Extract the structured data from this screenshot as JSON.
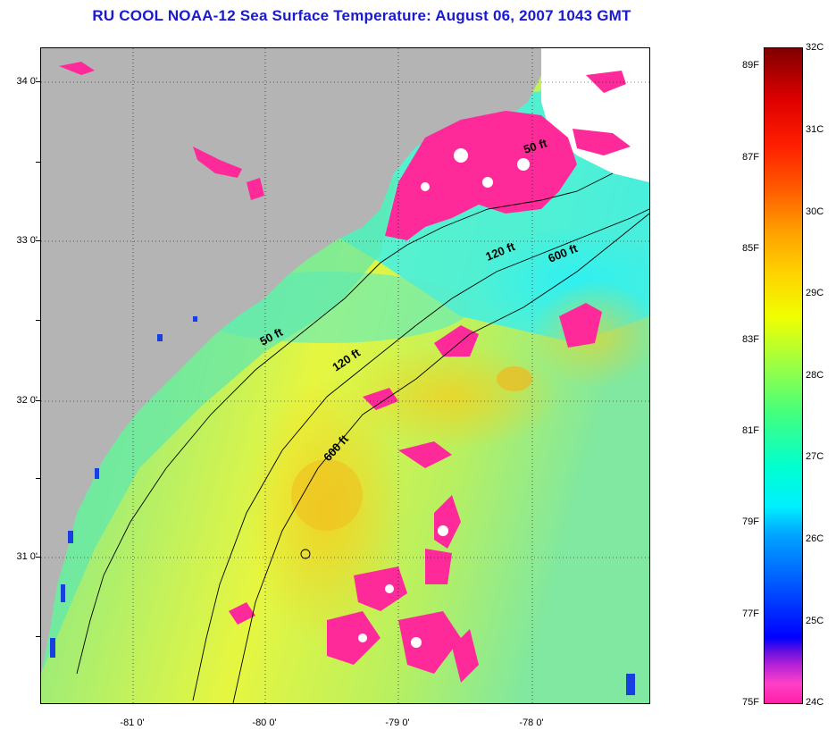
{
  "title": "RU COOL  NOAA-12  Sea Surface Temperature:  August 06, 2007 1043 GMT",
  "lat_labels": [
    "34 0'",
    "33 0'",
    "32 0'",
    "31 0'"
  ],
  "lon_labels": [
    "-81 0'",
    "-80 0'",
    "-79 0'",
    "-78 0'"
  ],
  "contour_labels": [
    "50 ft",
    "120 ft",
    "600 ft",
    "50 ft",
    "120 ft",
    "600 ft"
  ],
  "legend": {
    "fahrenheit": [
      "89F",
      "87F",
      "85F",
      "83F",
      "81F",
      "79F",
      "77F",
      "75F"
    ],
    "celsius": [
      "32C",
      "31C",
      "30C",
      "29C",
      "28C",
      "27C",
      "26C",
      "25C",
      "24C"
    ]
  },
  "colors": {
    "land": "#b4b4b4",
    "cloud": "#ff2a9a",
    "title": "#1a1ad0"
  }
}
